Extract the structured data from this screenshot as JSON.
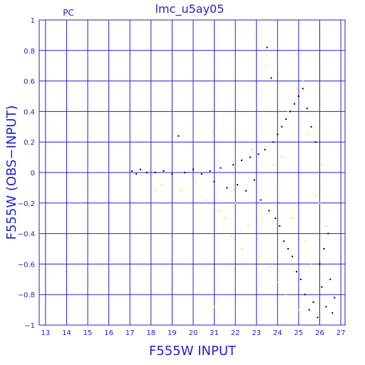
{
  "chart_data": {
    "type": "scatter",
    "title": "lmc_u5ay05",
    "corner_label": "PC",
    "xlabel": "F555W INPUT",
    "ylabel": "F555W (OBS−INPUT)",
    "xlim": [
      12.7,
      27.2
    ],
    "ylim": [
      -1,
      1
    ],
    "x_ticks": [
      13,
      14,
      15,
      16,
      17,
      18,
      19,
      20,
      21,
      22,
      23,
      24,
      25,
      26,
      27
    ],
    "y_ticks": [
      -1,
      -0.8,
      -0.6,
      -0.4,
      -0.2,
      0,
      0.2,
      0.4,
      0.6,
      0.8,
      1
    ],
    "y_tick_labels": [
      "−1",
      "−0.8",
      "−0.6",
      "−0.4",
      "−0.2",
      "0",
      "0.2",
      "0.4",
      "0.6",
      "0.8",
      "1"
    ],
    "grid": true,
    "colors": {
      "axes": "#2222cc",
      "grid": "#2222cc",
      "text": "#2222cc"
    },
    "series": [
      {
        "color": "#000000",
        "points": [
          [
            17.1,
            0.01
          ],
          [
            17.3,
            -0.01
          ],
          [
            17.5,
            0.02
          ],
          [
            17.8,
            0.0
          ],
          [
            18.2,
            0.0
          ],
          [
            18.6,
            0.01
          ],
          [
            19.0,
            -0.01
          ],
          [
            19.3,
            0.24
          ],
          [
            19.6,
            0.0
          ],
          [
            20.0,
            0.02
          ],
          [
            20.4,
            -0.01
          ],
          [
            20.8,
            0.01
          ],
          [
            21.0,
            -0.06
          ],
          [
            21.3,
            0.03
          ],
          [
            21.6,
            -0.1
          ],
          [
            21.9,
            0.05
          ],
          [
            22.1,
            -0.08
          ],
          [
            22.3,
            0.08
          ],
          [
            22.5,
            -0.12
          ],
          [
            22.7,
            0.1
          ],
          [
            22.9,
            -0.05
          ],
          [
            23.1,
            0.12
          ],
          [
            23.2,
            -0.18
          ],
          [
            23.4,
            0.15
          ],
          [
            23.5,
            0.82
          ],
          [
            23.6,
            -0.25
          ],
          [
            23.7,
            0.62
          ],
          [
            23.8,
            0.2
          ],
          [
            23.9,
            -0.3
          ],
          [
            24.0,
            0.25
          ],
          [
            24.1,
            -0.35
          ],
          [
            24.2,
            0.3
          ],
          [
            24.3,
            -0.45
          ],
          [
            24.4,
            0.35
          ],
          [
            24.5,
            -0.5
          ],
          [
            24.6,
            0.4
          ],
          [
            24.7,
            -0.55
          ],
          [
            24.8,
            0.45
          ],
          [
            24.9,
            -0.65
          ],
          [
            25.0,
            0.5
          ],
          [
            25.1,
            -0.7
          ],
          [
            25.2,
            0.55
          ],
          [
            25.3,
            -0.8
          ],
          [
            25.4,
            0.42
          ],
          [
            25.5,
            -0.9
          ],
          [
            25.6,
            0.3
          ],
          [
            25.7,
            -0.85
          ],
          [
            25.8,
            0.2
          ],
          [
            25.9,
            -0.95
          ],
          [
            26.0,
            -0.6
          ],
          [
            26.1,
            -0.75
          ],
          [
            26.2,
            -0.5
          ],
          [
            26.3,
            -0.88
          ],
          [
            26.4,
            -0.4
          ],
          [
            26.5,
            -0.7
          ],
          [
            26.6,
            -0.92
          ],
          [
            26.7,
            -0.82
          ]
        ]
      },
      {
        "color": "#ffee00",
        "points": [
          [
            18.2,
            -0.12
          ],
          [
            18.5,
            -0.08
          ],
          [
            19.4,
            -0.12
          ],
          [
            20.1,
            -0.06
          ],
          [
            20.6,
            -0.18
          ],
          [
            20.9,
            0.27
          ],
          [
            21.0,
            -0.88
          ],
          [
            21.2,
            -0.25
          ],
          [
            21.5,
            -0.3
          ],
          [
            21.8,
            -0.42
          ],
          [
            22.0,
            -0.2
          ],
          [
            22.3,
            -0.5
          ],
          [
            22.6,
            -0.35
          ],
          [
            22.8,
            0.15
          ],
          [
            22.9,
            0.9
          ],
          [
            23.1,
            -0.55
          ],
          [
            23.3,
            -0.32
          ],
          [
            23.5,
            0.7
          ],
          [
            23.7,
            -0.62
          ],
          [
            23.8,
            0.05
          ],
          [
            24.0,
            -0.72
          ],
          [
            24.2,
            0.1
          ],
          [
            24.4,
            -0.8
          ],
          [
            24.5,
            0.4
          ],
          [
            24.7,
            -0.3
          ],
          [
            24.9,
            0.55
          ],
          [
            25.0,
            -0.9
          ],
          [
            25.2,
            0.6
          ],
          [
            25.3,
            -0.45
          ],
          [
            25.5,
            0.25
          ],
          [
            25.6,
            -0.6
          ],
          [
            25.8,
            -0.15
          ],
          [
            26.0,
            -0.2
          ],
          [
            26.1,
            0.05
          ],
          [
            26.3,
            -0.35
          ]
        ]
      }
    ]
  }
}
